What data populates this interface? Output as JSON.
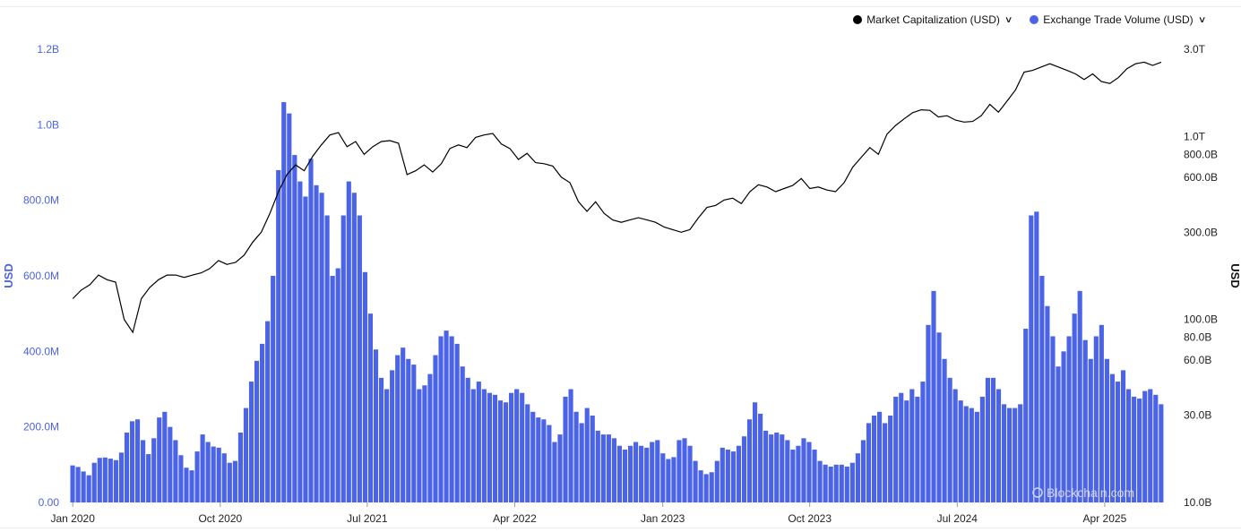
{
  "legend": {
    "items": [
      {
        "label": "Market Capitalization (USD)",
        "color": "#000000"
      },
      {
        "label": "Exchange Trade Volume (USD)",
        "color": "#4a63e7"
      }
    ]
  },
  "watermark": "Blockchain.com",
  "chart_data": {
    "type": "bar+line",
    "x_ticks": [
      "Jan 2020",
      "Oct 2020",
      "Jul 2021",
      "Apr 2022",
      "Jan 2023",
      "Oct 2023",
      "Jul 2024",
      "Apr 2025"
    ],
    "y_left": {
      "label": "USD",
      "ticks": [
        "0.00",
        "200.0M",
        "400.0M",
        "600.0M",
        "800.0M",
        "1.0B",
        "1.2B"
      ],
      "range": [
        0,
        1200000000
      ],
      "color": "#4a63e7"
    },
    "y_right": {
      "label": "USD",
      "scale": "log",
      "ticks": [
        "10.0B",
        "30.0B",
        "60.0B",
        "80.0B",
        "100.0B",
        "300.0B",
        "600.0B",
        "800.0B",
        "1.0T",
        "3.0T"
      ],
      "range": [
        10000000000,
        3000000000000
      ]
    },
    "series": [
      {
        "name": "Exchange Trade Volume (USD)",
        "type": "bar",
        "axis": "left",
        "unit": "M USD",
        "x_start": "2020-01-01",
        "x_end": "2025-07-15",
        "values": [
          98,
          94,
          82,
          72,
          105,
          118,
          119,
          116,
          112,
          132,
          185,
          215,
          220,
          165,
          128,
          170,
          225,
          240,
          200,
          165,
          125,
          92,
          85,
          135,
          180,
          160,
          148,
          145,
          130,
          105,
          110,
          185,
          250,
          320,
          375,
          420,
          480,
          600,
          880,
          1060,
          1030,
          920,
          850,
          810,
          910,
          840,
          820,
          760,
          600,
          620,
          760,
          850,
          820,
          760,
          610,
          500,
          405,
          330,
          300,
          350,
          390,
          410,
          380,
          365,
          300,
          310,
          340,
          390,
          440,
          455,
          440,
          420,
          360,
          330,
          300,
          320,
          300,
          290,
          285,
          270,
          265,
          290,
          300,
          290,
          260,
          240,
          225,
          220,
          205,
          160,
          180,
          280,
          300,
          240,
          210,
          250,
          230,
          190,
          180,
          180,
          170,
          150,
          140,
          150,
          160,
          150,
          145,
          160,
          165,
          130,
          115,
          120,
          165,
          170,
          150,
          110,
          85,
          75,
          80,
          110,
          145,
          140,
          135,
          150,
          175,
          220,
          265,
          235,
          190,
          180,
          185,
          180,
          165,
          140,
          150,
          170,
          160,
          140,
          110,
          100,
          95,
          100,
          100,
          95,
          105,
          130,
          165,
          210,
          230,
          240,
          210,
          230,
          280,
          290,
          270,
          300,
          280,
          320,
          470,
          560,
          450,
          380,
          330,
          300,
          270,
          255,
          250,
          240,
          280,
          330,
          330,
          300,
          260,
          250,
          250,
          260,
          460,
          760,
          770,
          600,
          520,
          440,
          360,
          400,
          440,
          500,
          560,
          430,
          380,
          440,
          470,
          380,
          340,
          320,
          350,
          300,
          280,
          275,
          295,
          300,
          285,
          260
        ]
      },
      {
        "name": "Market Capitalization (USD)",
        "type": "line",
        "axis": "right",
        "unit": "B USD",
        "x_start": "2020-01-01",
        "x_end": "2025-07-15",
        "values": [
          130,
          145,
          155,
          175,
          165,
          160,
          100,
          85,
          130,
          150,
          165,
          175,
          175,
          170,
          175,
          180,
          190,
          210,
          200,
          205,
          225,
          265,
          300,
          380,
          500,
          620,
          700,
          650,
          780,
          900,
          1020,
          1050,
          880,
          940,
          800,
          880,
          940,
          950,
          920,
          620,
          650,
          700,
          640,
          710,
          860,
          900,
          870,
          990,
          1020,
          1040,
          910,
          860,
          750,
          810,
          720,
          710,
          690,
          600,
          560,
          440,
          390,
          440,
          380,
          350,
          340,
          350,
          360,
          350,
          340,
          320,
          310,
          300,
          310,
          360,
          410,
          420,
          450,
          460,
          430,
          500,
          545,
          530,
          500,
          520,
          540,
          590,
          520,
          530,
          510,
          500,
          560,
          680,
          770,
          870,
          800,
          1030,
          1150,
          1250,
          1350,
          1400,
          1390,
          1280,
          1300,
          1230,
          1200,
          1210,
          1300,
          1500,
          1360,
          1560,
          1800,
          2250,
          2300,
          2400,
          2500,
          2400,
          2300,
          2200,
          2050,
          2200,
          2000,
          1950,
          2100,
          2350,
          2500,
          2550,
          2450,
          2550
        ]
      }
    ]
  }
}
